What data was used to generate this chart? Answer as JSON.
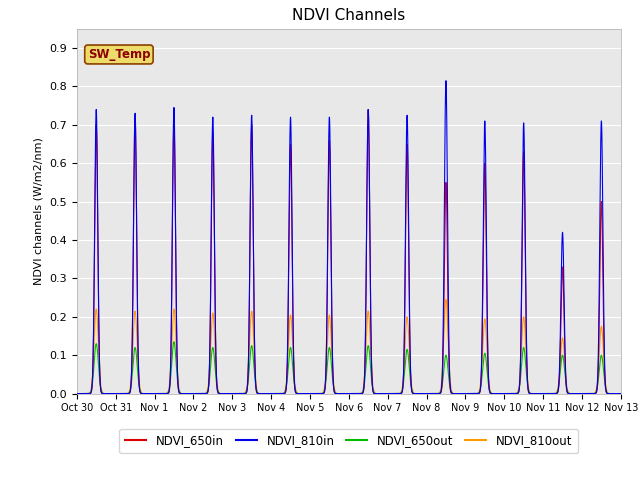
{
  "title": "NDVI Channels",
  "ylabel": "NDVI channels (W/m2/nm)",
  "xlabel": "",
  "ylim": [
    0.0,
    0.95
  ],
  "yticks": [
    0.0,
    0.1,
    0.2,
    0.3,
    0.4,
    0.5,
    0.6,
    0.7,
    0.8,
    0.9
  ],
  "xtick_labels": [
    "Oct 30",
    "Oct 31",
    "Nov 1",
    "Nov 2",
    "Nov 3",
    "Nov 4",
    "Nov 5",
    "Nov 6",
    "Nov 7",
    "Nov 8",
    "Nov 9",
    "Nov 10",
    "Nov 11",
    "Nov 12",
    "Nov 13"
  ],
  "xtick_positions": [
    0,
    1,
    2,
    3,
    4,
    5,
    6,
    7,
    8,
    9,
    10,
    11,
    12,
    13,
    14
  ],
  "annotation_text": "SW_Temp",
  "colors": {
    "NDVI_650in": "#dd0000",
    "NDVI_810in": "#0000ee",
    "NDVI_650out": "#00bb00",
    "NDVI_810out": "#ff9900"
  },
  "fig_facecolor": "#ffffff",
  "ax_facecolor": "#e8e8e8",
  "peaks_650in": [
    0.7,
    0.72,
    0.71,
    0.68,
    0.7,
    0.65,
    0.66,
    0.74,
    0.65,
    0.55,
    0.6,
    0.63,
    0.33,
    0.5
  ],
  "peaks_810in": [
    0.74,
    0.73,
    0.745,
    0.72,
    0.725,
    0.72,
    0.72,
    0.74,
    0.725,
    0.815,
    0.71,
    0.705,
    0.42,
    0.71
  ],
  "peaks_650out": [
    0.13,
    0.12,
    0.135,
    0.12,
    0.125,
    0.12,
    0.12,
    0.125,
    0.115,
    0.1,
    0.105,
    0.12,
    0.1,
    0.1
  ],
  "peaks_810out": [
    0.22,
    0.215,
    0.22,
    0.21,
    0.215,
    0.205,
    0.205,
    0.215,
    0.2,
    0.245,
    0.195,
    0.2,
    0.145,
    0.175
  ],
  "peak_sigma_in": 0.04,
  "peak_sigma_out": 0.055,
  "num_days": 14
}
